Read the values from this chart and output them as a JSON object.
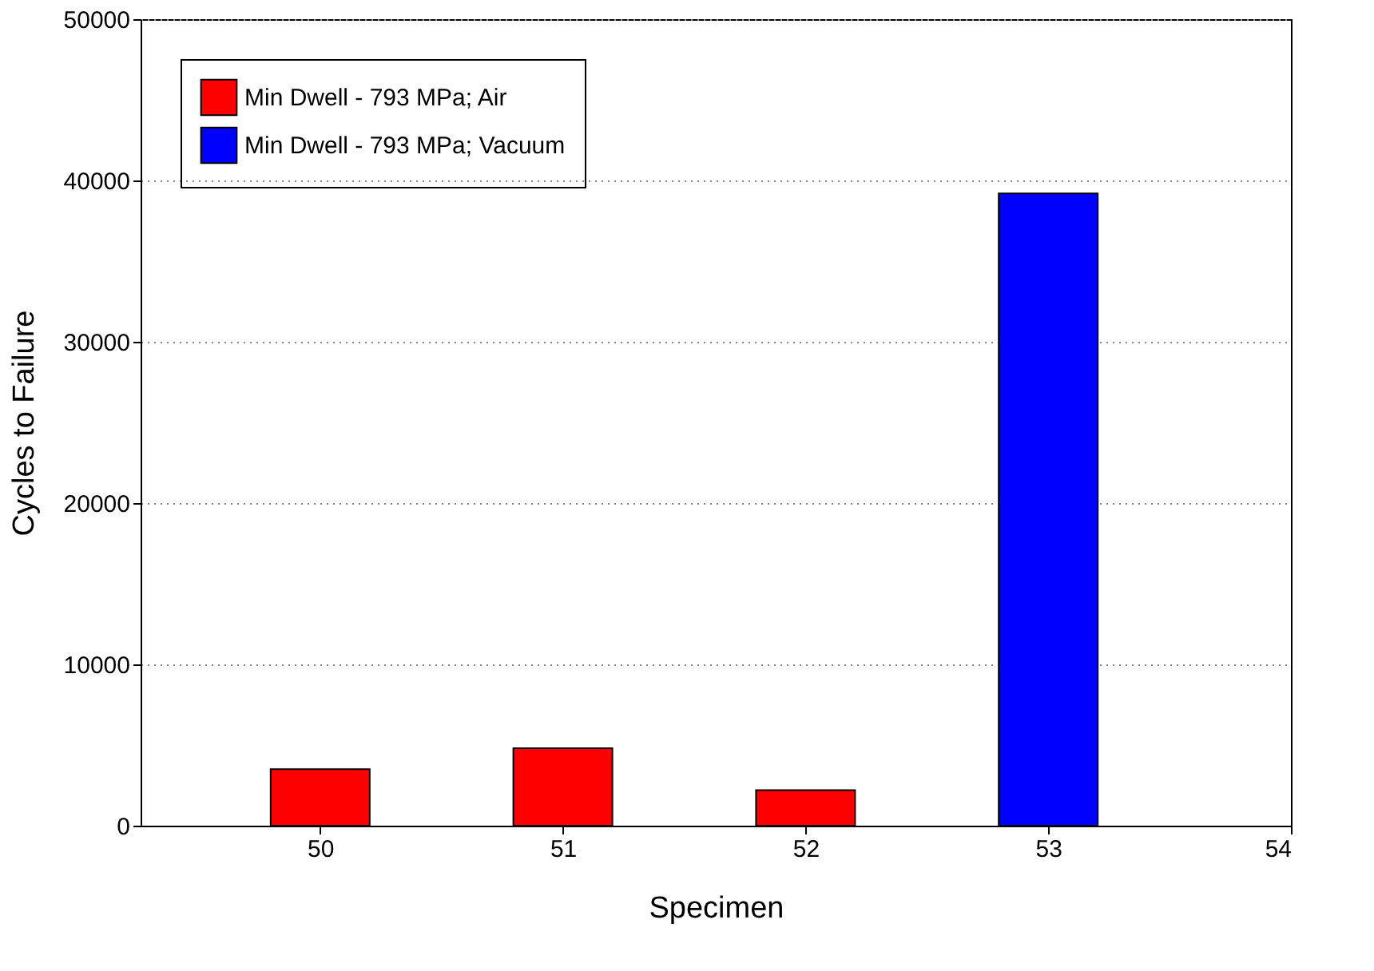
{
  "chart_data": {
    "type": "bar",
    "xlabel": "Specimen",
    "ylabel": "Cycles to Failure",
    "series": [
      {
        "name": "Min Dwell - 793 MPa; Air",
        "color": "#ff0000",
        "x": [
          50,
          51,
          52
        ],
        "values": [
          3500,
          4800,
          2200
        ]
      },
      {
        "name": "Min Dwell - 793 MPa; Vacuum",
        "color": "#0000ff",
        "x": [
          53
        ],
        "values": [
          39200
        ]
      }
    ],
    "xlim": [
      49.26,
      54
    ],
    "xticks": [
      50,
      51,
      52,
      53,
      54
    ],
    "ylim": [
      0,
      50000
    ],
    "yticks": [
      0,
      10000,
      20000,
      30000,
      40000,
      50000
    ],
    "grid": "y",
    "legend": "top left"
  }
}
